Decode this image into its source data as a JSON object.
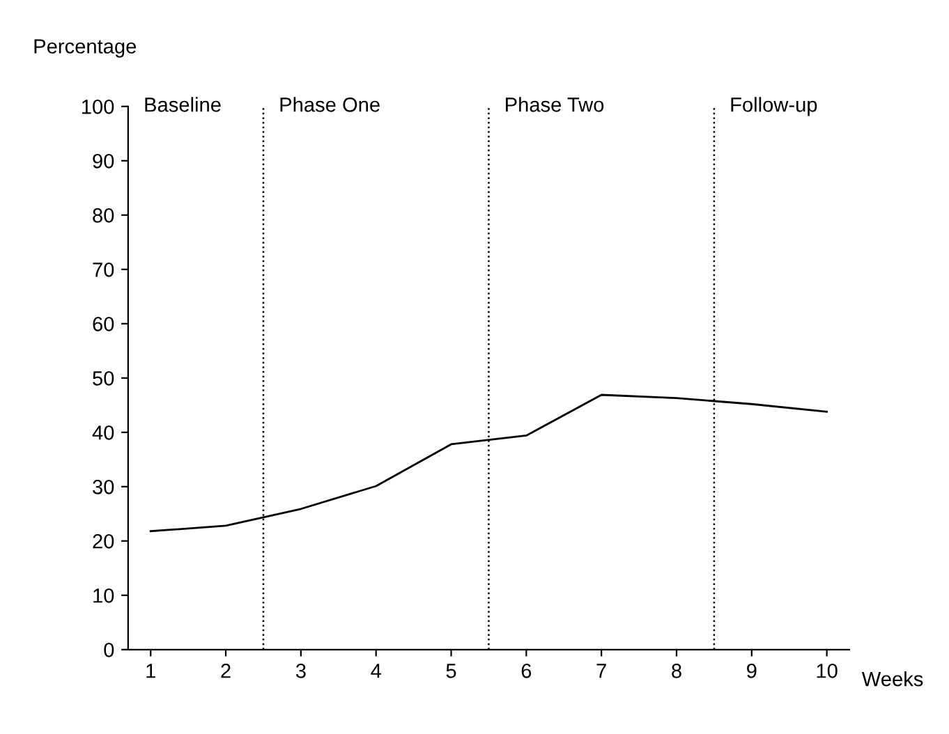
{
  "chart_data": {
    "type": "line",
    "xlabel": "Weeks",
    "ylabel": "Percentage",
    "x": [
      1,
      2,
      3,
      4,
      5,
      6,
      7,
      8,
      9,
      10
    ],
    "series": [
      {
        "color": "#000000",
        "values": [
          21.8,
          22.8,
          25.9,
          30.1,
          37.8,
          39.4,
          46.9,
          46.3,
          45.2,
          43.8
        ]
      }
    ],
    "xlim": [
      0.7,
      10.3
    ],
    "ylim": [
      0,
      100
    ],
    "xticks": [
      1,
      2,
      3,
      4,
      5,
      6,
      7,
      8,
      9,
      10
    ],
    "yticks": [
      0,
      10,
      20,
      30,
      40,
      50,
      60,
      70,
      80,
      90,
      100
    ],
    "ref_lines": [
      {
        "axis": "x",
        "value": 2.5,
        "line_style": "dotted",
        "color": "#000000"
      },
      {
        "axis": "x",
        "value": 5.5,
        "line_style": "dotted",
        "color": "#000000"
      },
      {
        "axis": "x",
        "value": 8.5,
        "line_style": "dotted",
        "color": "#000000"
      }
    ],
    "annotations": [
      "Baseline",
      "Phase One",
      "Phase Two",
      "Follow-up"
    ],
    "marker": "none",
    "line_style": "solid",
    "grid": false,
    "legend": false
  }
}
